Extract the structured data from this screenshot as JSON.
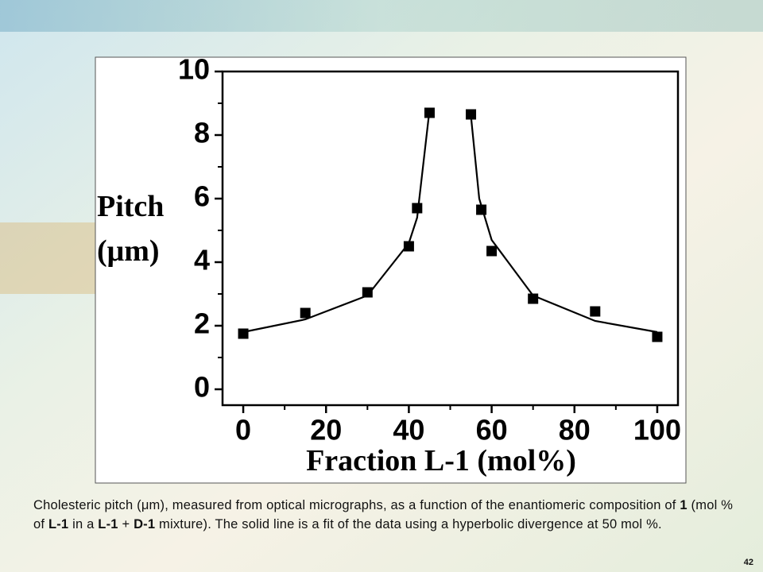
{
  "chart_data": {
    "type": "scatter",
    "xlabel": "Fraction L-1 (mol%)",
    "ylabel": [
      "Pitch",
      "(μm)"
    ],
    "xlim": [
      -5,
      105
    ],
    "ylim": [
      -0.5,
      10
    ],
    "xticks": [
      0,
      20,
      40,
      60,
      80,
      100
    ],
    "yticks": [
      0,
      2,
      4,
      6,
      8,
      10
    ],
    "xminor": [
      10,
      30,
      50,
      70,
      90
    ],
    "yminor": [
      1,
      3,
      5,
      7,
      9
    ],
    "series": [
      {
        "color": "#000000",
        "marker": "square",
        "x": [
          0,
          15,
          30,
          40,
          42,
          45,
          55,
          57.5,
          60,
          70,
          85,
          100
        ],
        "values": [
          1.75,
          2.4,
          3.05,
          4.5,
          5.7,
          8.7,
          8.65,
          5.65,
          4.35,
          2.85,
          2.45,
          1.65
        ]
      },
      {
        "color": "#000000",
        "marker": "line",
        "x": [
          0,
          15,
          30,
          40,
          42,
          45,
          50,
          55,
          57,
          60,
          70,
          85,
          100
        ],
        "values": [
          1.8,
          2.2,
          2.95,
          4.6,
          5.4,
          8.8,
          null,
          8.6,
          6.0,
          4.7,
          2.95,
          2.15,
          1.8
        ]
      }
    ]
  },
  "caption": [
    "Cholesteric pitch (μm), measured from optical micrographs, as a function of the enantiomeric composition of ",
    "1",
    " (mol % of ",
    "L-1",
    " in a ",
    "L-1",
    " + ",
    "D-1",
    " mixture). The solid line is a fit of the data using a hyperbolic divergence at 50 mol %."
  ],
  "slide_number": "42"
}
